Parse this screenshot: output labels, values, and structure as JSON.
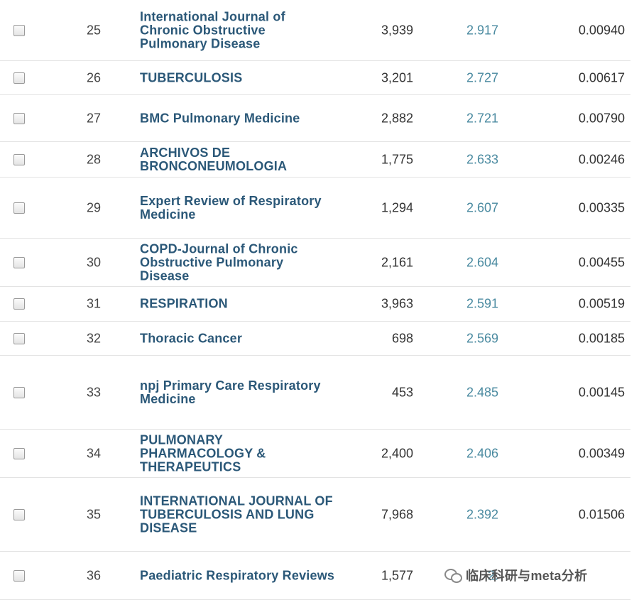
{
  "rows": [
    {
      "rank": "25",
      "title": "International Journal of Chronic Obstructive Pulmonary Disease",
      "total_cites": "3,939",
      "jif": "2.917",
      "eigenfactor": "0.00940"
    },
    {
      "rank": "26",
      "title": "TUBERCULOSIS",
      "total_cites": "3,201",
      "jif": "2.727",
      "eigenfactor": "0.00617"
    },
    {
      "rank": "27",
      "title": "BMC Pulmonary Medicine",
      "total_cites": "2,882",
      "jif": "2.721",
      "eigenfactor": "0.00790"
    },
    {
      "rank": "28",
      "title": "ARCHIVOS DE BRONCONEUMOLOGIA",
      "total_cites": "1,775",
      "jif": "2.633",
      "eigenfactor": "0.00246"
    },
    {
      "rank": "29",
      "title": "Expert Review of Respiratory Medicine",
      "total_cites": "1,294",
      "jif": "2.607",
      "eigenfactor": "0.00335"
    },
    {
      "rank": "30",
      "title": "COPD-Journal of Chronic Obstructive Pulmonary Disease",
      "total_cites": "2,161",
      "jif": "2.604",
      "eigenfactor": "0.00455"
    },
    {
      "rank": "31",
      "title": "RESPIRATION",
      "total_cites": "3,963",
      "jif": "2.591",
      "eigenfactor": "0.00519"
    },
    {
      "rank": "32",
      "title": "Thoracic Cancer",
      "total_cites": "698",
      "jif": "2.569",
      "eigenfactor": "0.00185"
    },
    {
      "rank": "33",
      "title": "npj Primary Care Respiratory Medicine",
      "total_cites": "453",
      "jif": "2.485",
      "eigenfactor": "0.00145"
    },
    {
      "rank": "34",
      "title": "PULMONARY PHARMACOLOGY & THERAPEUTICS",
      "total_cites": "2,400",
      "jif": "2.406",
      "eigenfactor": "0.00349"
    },
    {
      "rank": "35",
      "title": "INTERNATIONAL JOURNAL OF TUBERCULOSIS AND LUNG DISEASE",
      "total_cites": "7,968",
      "jif": "2.392",
      "eigenfactor": "0.01506"
    },
    {
      "rank": "36",
      "title": "Paediatric Respiratory Reviews",
      "total_cites": "1,577",
      "jif": "2.",
      "eigenfactor": ""
    }
  ],
  "watermark": {
    "text": "临床科研与meta分析",
    "icon": "wechat-icon"
  },
  "colors": {
    "title": "#2b5878",
    "jif": "#4a8aa0",
    "row_border": "#e3e3e3"
  }
}
